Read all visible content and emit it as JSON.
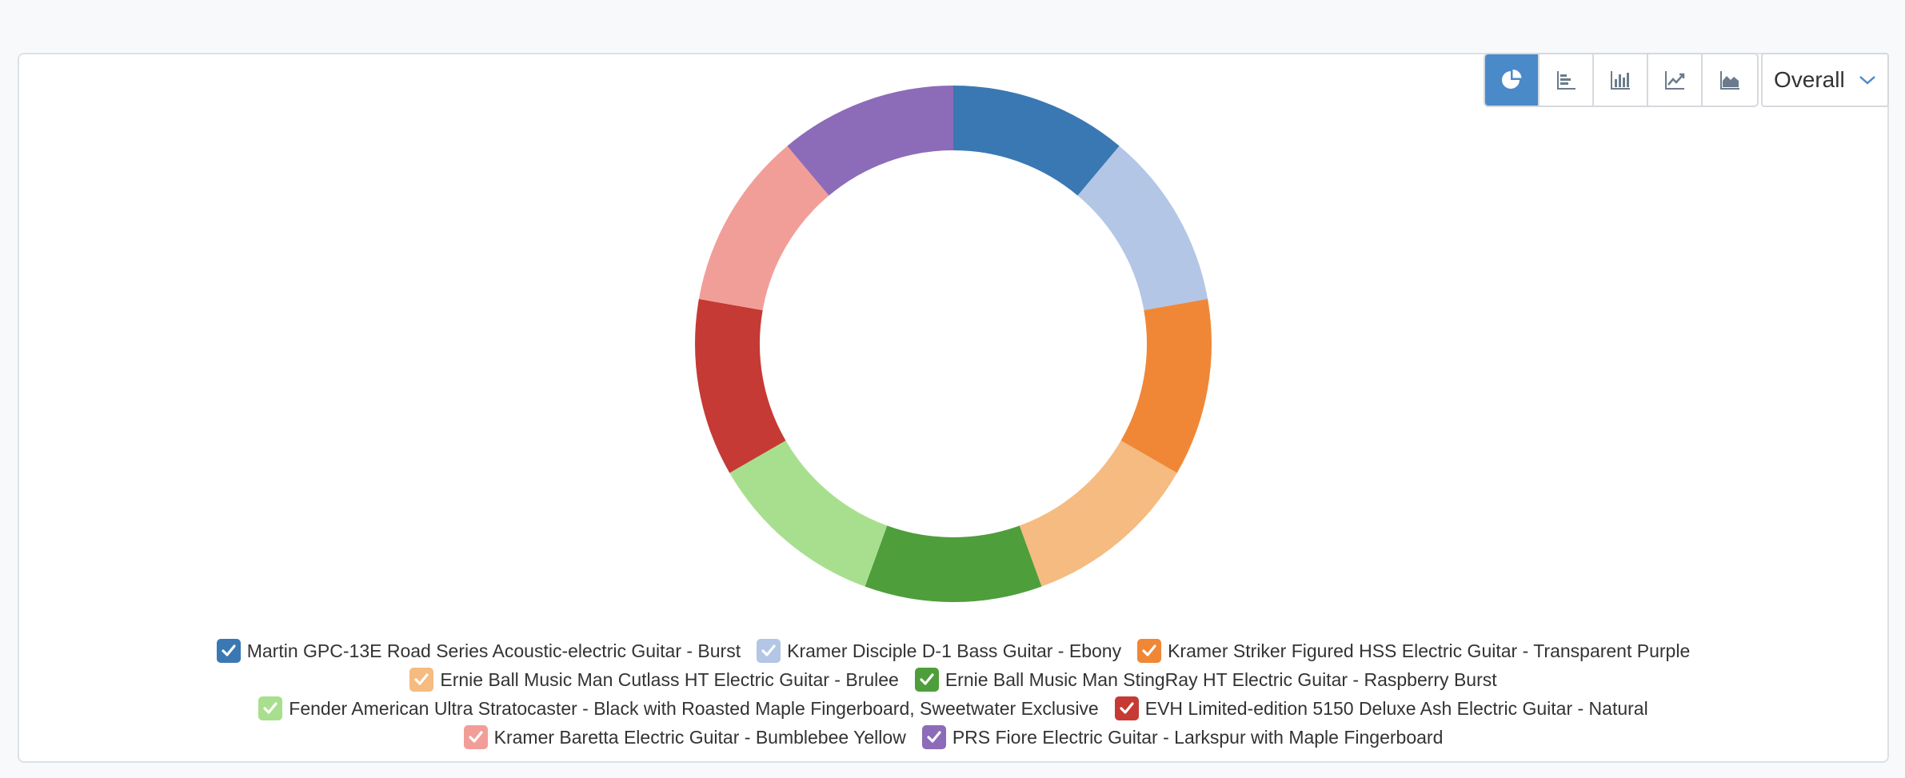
{
  "toolbar": {
    "buttons": [
      {
        "icon": "pie-chart-icon",
        "active": true
      },
      {
        "icon": "horizontal-bar-chart-icon",
        "active": false
      },
      {
        "icon": "vertical-bar-chart-icon",
        "active": false
      },
      {
        "icon": "line-chart-icon",
        "active": false
      },
      {
        "icon": "area-chart-icon",
        "active": false
      }
    ],
    "active_color": "#4a8ac9"
  },
  "period_select": {
    "selected": "Overall"
  },
  "chart_data": {
    "type": "pie",
    "donut": true,
    "legend_position": "bottom",
    "series": [
      {
        "name": "Martin GPC-13E Road Series Acoustic-electric Guitar - Burst",
        "value": 1,
        "color": "#3a78b3"
      },
      {
        "name": "Kramer Disciple D-1 Bass Guitar - Ebony",
        "value": 1,
        "color": "#b3c6e6"
      },
      {
        "name": "Kramer Striker Figured HSS Electric Guitar - Transparent Purple",
        "value": 1,
        "color": "#f08736"
      },
      {
        "name": "Ernie Ball Music Man Cutlass HT Electric Guitar - Brulee",
        "value": 1,
        "color": "#f5bb80"
      },
      {
        "name": "Ernie Ball Music Man StingRay HT Electric Guitar - Raspberry Burst",
        "value": 1,
        "color": "#4e9e3c"
      },
      {
        "name": "Fender American Ultra Stratocaster - Black with Roasted Maple Fingerboard, Sweetwater Exclusive",
        "value": 1,
        "color": "#a8df8e"
      },
      {
        "name": "EVH Limited-edition 5150 Deluxe Ash Electric Guitar - Natural",
        "value": 1,
        "color": "#c53a34"
      },
      {
        "name": "Kramer Baretta Electric Guitar - Bumblebee Yellow",
        "value": 1,
        "color": "#f29e98"
      },
      {
        "name": "PRS Fiore Electric Guitar - Larkspur with Maple Fingerboard",
        "value": 1,
        "color": "#8c6cb8"
      }
    ]
  }
}
